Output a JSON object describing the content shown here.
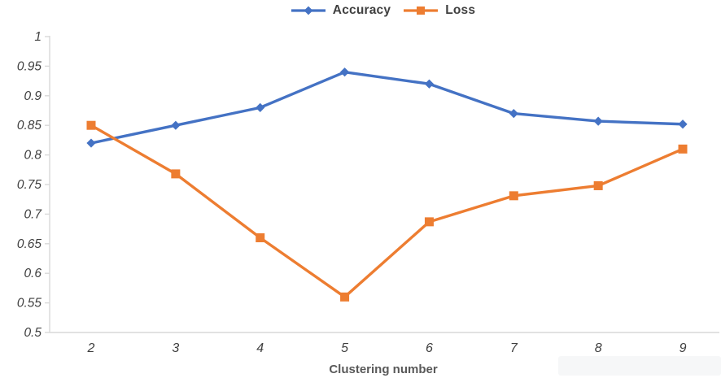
{
  "chart_data": {
    "type": "line",
    "title": "",
    "xlabel": "Clustering number",
    "ylabel": "",
    "x_categories": [
      "2",
      "3",
      "4",
      "5",
      "6",
      "7",
      "8",
      "9"
    ],
    "y_ticks": [
      "1",
      "0.95",
      "0.9",
      "0.85",
      "0.8",
      "0.75",
      "0.7",
      "0.65",
      "0.6",
      "0.55",
      "0.5"
    ],
    "y_tick_step": 0.05,
    "ylim": [
      0.5,
      1.0
    ],
    "grid": false,
    "legend_position": "top",
    "series": [
      {
        "name": "Accuracy",
        "color": "#4472C4",
        "marker": "diamond",
        "values": [
          0.82,
          0.85,
          0.88,
          0.94,
          0.92,
          0.87,
          0.857,
          0.852
        ]
      },
      {
        "name": "Loss",
        "color": "#ED7D31",
        "marker": "square",
        "values": [
          0.85,
          0.768,
          0.66,
          0.56,
          0.687,
          0.731,
          0.748,
          0.81
        ]
      }
    ]
  },
  "colors": {
    "axis_line": "#d9d9d9",
    "tick_label": "#3f3f3f",
    "axis_title": "#595959",
    "legend_text": "#404040",
    "background": "#ffffff"
  }
}
